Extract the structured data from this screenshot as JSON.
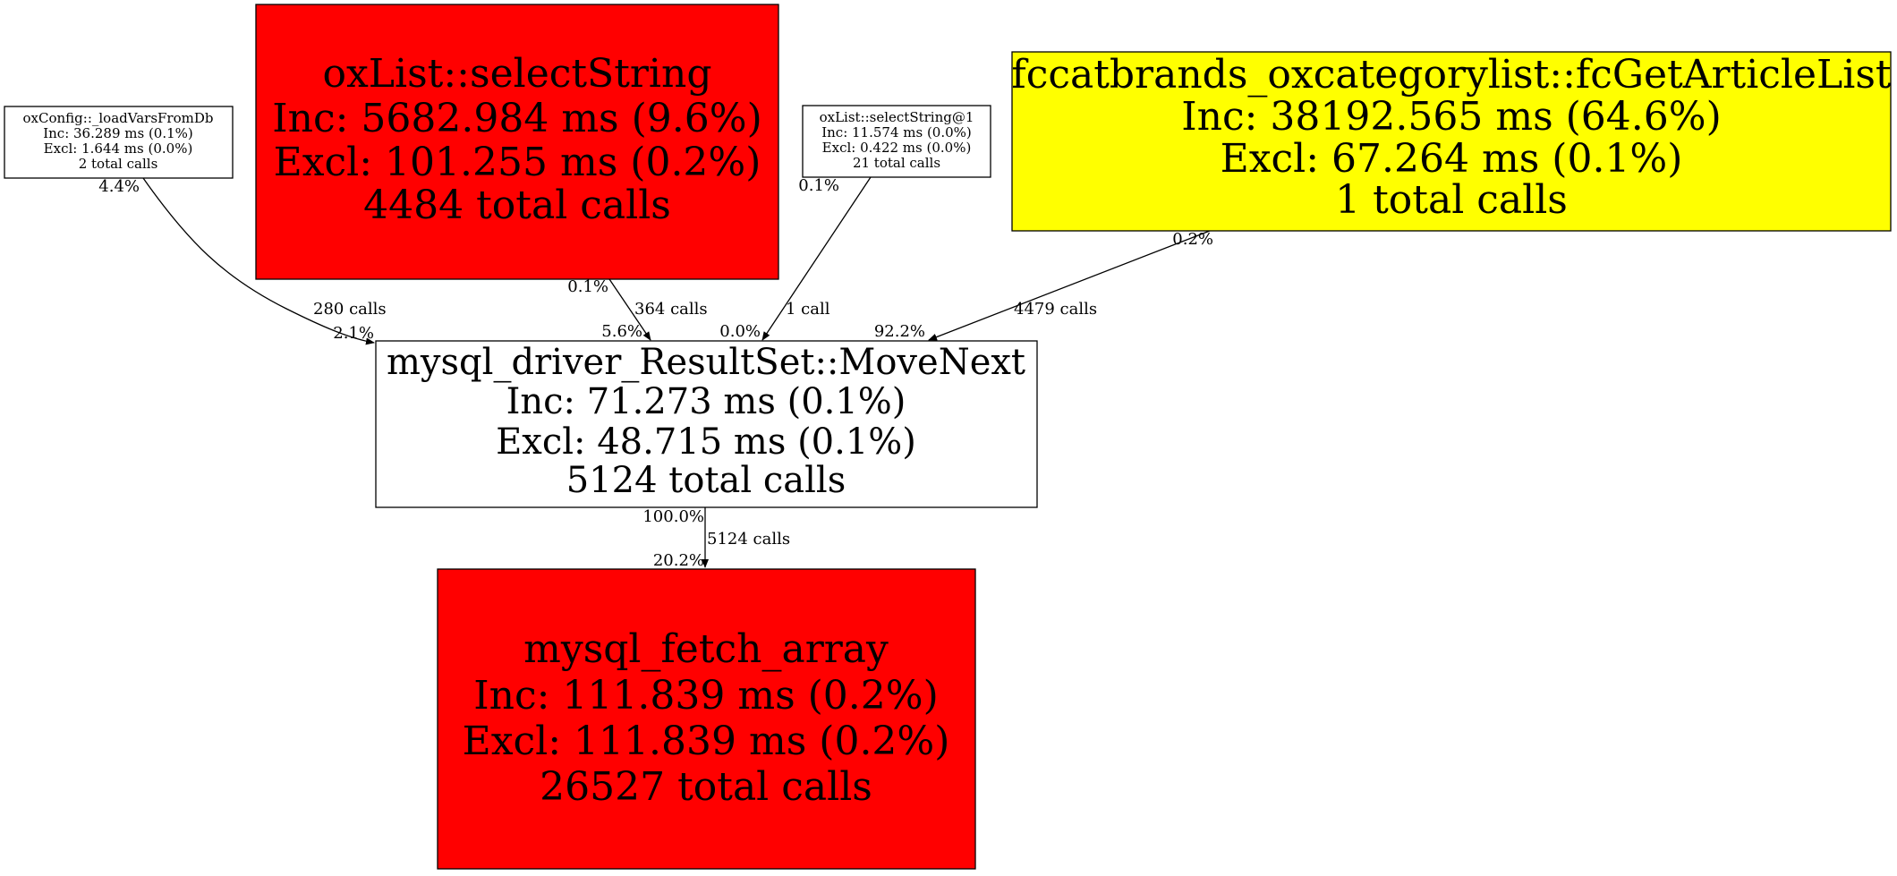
{
  "nodes": {
    "loadvars": {
      "lines": [
        "oxConfig::_loadVarsFromDb",
        "Inc: 36.289 ms (0.1%)",
        "Excl: 1.644 ms (0.0%)",
        "2 total calls"
      ],
      "fill": "#ffffff"
    },
    "selectstring": {
      "lines": [
        "oxList::selectString",
        "Inc: 5682.984 ms (9.6%)",
        "Excl: 101.255 ms (0.2%)",
        "4484 total calls"
      ],
      "fill": "#ff0000"
    },
    "selectstring1": {
      "lines": [
        "oxList::selectString@1",
        "Inc: 11.574 ms (0.0%)",
        "Excl: 0.422 ms (0.0%)",
        "21 total calls"
      ],
      "fill": "#ffffff"
    },
    "getarticlelist": {
      "lines": [
        "fccatbrands_oxcategorylist::fcGetArticleList",
        "Inc: 38192.565 ms (64.6%)",
        "Excl: 67.264 ms (0.1%)",
        "1 total calls"
      ],
      "fill": "#ffff00"
    },
    "movenext": {
      "lines": [
        "mysql_driver_ResultSet::MoveNext",
        "Inc: 71.273 ms (0.1%)",
        "Excl: 48.715 ms (0.1%)",
        "5124 total calls"
      ],
      "fill": "#ffffff"
    },
    "fetcharray": {
      "lines": [
        "mysql_fetch_array",
        "Inc: 111.839 ms (0.2%)",
        "Excl: 111.839 ms (0.2%)",
        "26527 total calls"
      ],
      "fill": "#ff0000"
    }
  },
  "edges": {
    "loadvars_movenext": {
      "tail": "4.4%",
      "calls": "280 calls",
      "head": "2.1%"
    },
    "selectstring_movenext": {
      "tail": "0.1%",
      "calls": "364 calls",
      "head": "5.6%"
    },
    "selectstring1_movenext": {
      "tail": "0.1%",
      "calls": "1 call",
      "head": "0.0%"
    },
    "getarticlelist_movenext": {
      "tail": "0.2%",
      "calls": "4479 calls",
      "head": "92.2%"
    },
    "movenext_fetcharray": {
      "tail": "100.0%",
      "calls": "5124 calls",
      "head": "20.2%"
    }
  }
}
